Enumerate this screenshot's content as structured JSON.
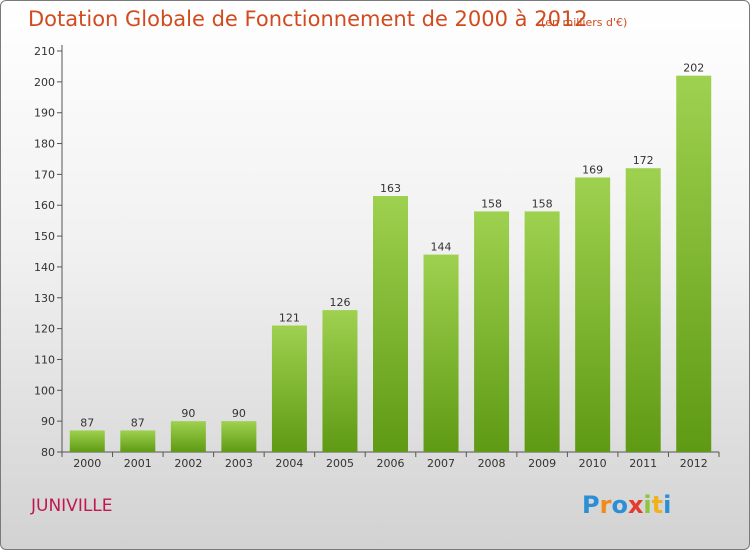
{
  "title": "Dotation Globale de Fonctionnement de 2000 à 2012",
  "subtitle": "(en milliers d'€)",
  "place": "JUNIVILLE",
  "logo": {
    "letters": [
      "P",
      "r",
      "o",
      "x",
      "i",
      "t",
      "i"
    ],
    "colors": [
      "#2a8fd6",
      "#f08a1c",
      "#2a8fd6",
      "#e63a2e",
      "#8cc63f",
      "#f0b21c",
      "#2a8fd6"
    ]
  },
  "colors": {
    "bar_light": "#9ed14f",
    "bar_dark": "#5f9a14",
    "title": "#d14b1e",
    "place": "#c0174f"
  },
  "chart_data": {
    "type": "bar",
    "categories": [
      "2000",
      "2001",
      "2002",
      "2003",
      "2004",
      "2005",
      "2006",
      "2007",
      "2008",
      "2009",
      "2010",
      "2011",
      "2012"
    ],
    "values": [
      87,
      87,
      90,
      90,
      121,
      126,
      163,
      144,
      158,
      158,
      169,
      172,
      202
    ],
    "title": "Dotation Globale de Fonctionnement de 2000 à 2012",
    "subtitle": "(en milliers d'€)",
    "xlabel": "",
    "ylabel": "",
    "ylim": [
      80,
      210
    ],
    "yticks": [
      80,
      90,
      100,
      110,
      120,
      130,
      140,
      150,
      160,
      170,
      180,
      190,
      200,
      210
    ],
    "grid": false,
    "data_labels": true
  }
}
